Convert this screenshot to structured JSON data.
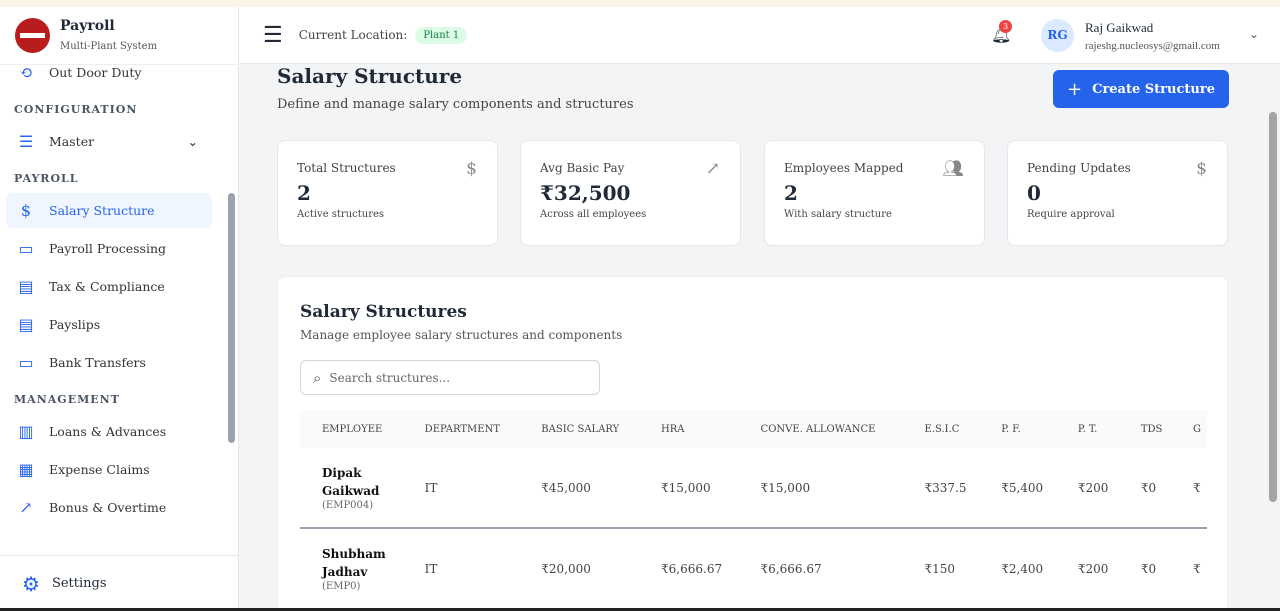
{
  "brand": {
    "title": "Payroll",
    "subtitle": "Multi-Plant System"
  },
  "sidebar": {
    "items_top": [
      {
        "label": "Out Door Duty"
      }
    ],
    "sections": [
      {
        "title": "CONFIGURATION",
        "items": [
          {
            "label": "Master"
          }
        ]
      },
      {
        "title": "PAYROLL",
        "items": [
          {
            "label": "Salary Structure"
          },
          {
            "label": "Payroll Processing"
          },
          {
            "label": "Tax & Compliance"
          },
          {
            "label": "Payslips"
          },
          {
            "label": "Bank Transfers"
          }
        ]
      },
      {
        "title": "MANAGEMENT",
        "items": [
          {
            "label": "Loans & Advances"
          },
          {
            "label": "Expense Claims"
          },
          {
            "label": "Bonus & Overtime"
          }
        ]
      }
    ],
    "settings": "Settings"
  },
  "header": {
    "location_label": "Current Location:",
    "location": "Plant 1",
    "notifications": "3",
    "avatar": "RG",
    "user_name": "Raj Gaikwad",
    "user_email": "rajeshg.nucleosys@gmail.com"
  },
  "page": {
    "title": "Salary Structure",
    "subtitle": "Define and manage salary components and structures",
    "create_label": "Create Structure"
  },
  "cards": [
    {
      "title": "Total Structures",
      "value": "2",
      "desc": "Active structures"
    },
    {
      "title": "Avg Basic Pay",
      "value": "₹32,500",
      "desc": "Across all employees"
    },
    {
      "title": "Employees Mapped",
      "value": "2",
      "desc": "With salary structure"
    },
    {
      "title": "Pending Updates",
      "value": "0",
      "desc": "Require approval"
    }
  ],
  "panel": {
    "title": "Salary Structures",
    "subtitle": "Manage employee salary structures and components",
    "search_placeholder": "Search structures..."
  },
  "table": {
    "columns": [
      "EMPLOYEE",
      "DEPARTMENT",
      "BASIC SALARY",
      "HRA",
      "CONVE. ALLOWANCE",
      "E.S.I.C",
      "P. F.",
      "P. T.",
      "TDS",
      "G"
    ],
    "rows": [
      {
        "first": "Dipak",
        "last": "Gaikwad",
        "id": "(EMP004)",
        "dept": "IT",
        "basic": "₹45,000",
        "hra": "₹15,000",
        "conv": "₹15,000",
        "esic": "₹337.5",
        "pf": "₹5,400",
        "pt": "₹200",
        "tds": "₹0",
        "more": "₹"
      },
      {
        "first": "Shubham",
        "last": "Jadhav",
        "id": "(EMP0)",
        "dept": "IT",
        "basic": "₹20,000",
        "hra": "₹6,666.67",
        "conv": "₹6,666.67",
        "esic": "₹150",
        "pf": "₹2,400",
        "pt": "₹200",
        "tds": "₹0",
        "more": "₹"
      }
    ]
  }
}
